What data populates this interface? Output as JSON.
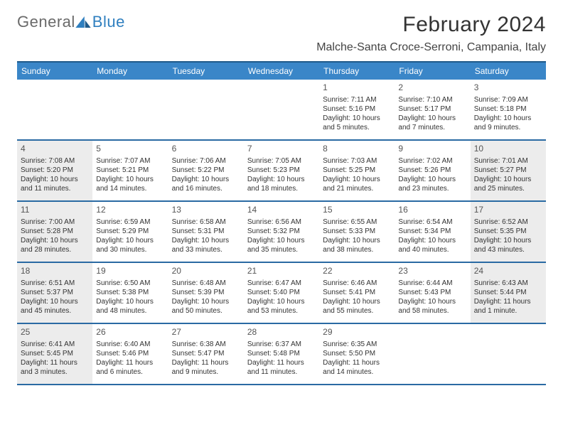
{
  "logo": {
    "text1": "General",
    "text2": "Blue"
  },
  "title": "February 2024",
  "location": "Malche-Santa Croce-Serroni, Campania, Italy",
  "colors": {
    "header_bg": "#3a86c8",
    "header_text": "#ffffff",
    "border": "#2a6aa3",
    "shaded_bg": "#ececec",
    "logo_gray": "#6a6a6a",
    "logo_blue": "#2f7fbf"
  },
  "weekdays": [
    "Sunday",
    "Monday",
    "Tuesday",
    "Wednesday",
    "Thursday",
    "Friday",
    "Saturday"
  ],
  "weeks": [
    [
      {
        "empty": true
      },
      {
        "empty": true
      },
      {
        "empty": true
      },
      {
        "empty": true
      },
      {
        "day": "1",
        "sunrise": "Sunrise: 7:11 AM",
        "sunset": "Sunset: 5:16 PM",
        "daylight": "Daylight: 10 hours and 5 minutes."
      },
      {
        "day": "2",
        "sunrise": "Sunrise: 7:10 AM",
        "sunset": "Sunset: 5:17 PM",
        "daylight": "Daylight: 10 hours and 7 minutes."
      },
      {
        "day": "3",
        "sunrise": "Sunrise: 7:09 AM",
        "sunset": "Sunset: 5:18 PM",
        "daylight": "Daylight: 10 hours and 9 minutes."
      }
    ],
    [
      {
        "day": "4",
        "shaded": true,
        "sunrise": "Sunrise: 7:08 AM",
        "sunset": "Sunset: 5:20 PM",
        "daylight": "Daylight: 10 hours and 11 minutes."
      },
      {
        "day": "5",
        "sunrise": "Sunrise: 7:07 AM",
        "sunset": "Sunset: 5:21 PM",
        "daylight": "Daylight: 10 hours and 14 minutes."
      },
      {
        "day": "6",
        "sunrise": "Sunrise: 7:06 AM",
        "sunset": "Sunset: 5:22 PM",
        "daylight": "Daylight: 10 hours and 16 minutes."
      },
      {
        "day": "7",
        "sunrise": "Sunrise: 7:05 AM",
        "sunset": "Sunset: 5:23 PM",
        "daylight": "Daylight: 10 hours and 18 minutes."
      },
      {
        "day": "8",
        "sunrise": "Sunrise: 7:03 AM",
        "sunset": "Sunset: 5:25 PM",
        "daylight": "Daylight: 10 hours and 21 minutes."
      },
      {
        "day": "9",
        "sunrise": "Sunrise: 7:02 AM",
        "sunset": "Sunset: 5:26 PM",
        "daylight": "Daylight: 10 hours and 23 minutes."
      },
      {
        "day": "10",
        "shaded": true,
        "sunrise": "Sunrise: 7:01 AM",
        "sunset": "Sunset: 5:27 PM",
        "daylight": "Daylight: 10 hours and 25 minutes."
      }
    ],
    [
      {
        "day": "11",
        "shaded": true,
        "sunrise": "Sunrise: 7:00 AM",
        "sunset": "Sunset: 5:28 PM",
        "daylight": "Daylight: 10 hours and 28 minutes."
      },
      {
        "day": "12",
        "sunrise": "Sunrise: 6:59 AM",
        "sunset": "Sunset: 5:29 PM",
        "daylight": "Daylight: 10 hours and 30 minutes."
      },
      {
        "day": "13",
        "sunrise": "Sunrise: 6:58 AM",
        "sunset": "Sunset: 5:31 PM",
        "daylight": "Daylight: 10 hours and 33 minutes."
      },
      {
        "day": "14",
        "sunrise": "Sunrise: 6:56 AM",
        "sunset": "Sunset: 5:32 PM",
        "daylight": "Daylight: 10 hours and 35 minutes."
      },
      {
        "day": "15",
        "sunrise": "Sunrise: 6:55 AM",
        "sunset": "Sunset: 5:33 PM",
        "daylight": "Daylight: 10 hours and 38 minutes."
      },
      {
        "day": "16",
        "sunrise": "Sunrise: 6:54 AM",
        "sunset": "Sunset: 5:34 PM",
        "daylight": "Daylight: 10 hours and 40 minutes."
      },
      {
        "day": "17",
        "shaded": true,
        "sunrise": "Sunrise: 6:52 AM",
        "sunset": "Sunset: 5:35 PM",
        "daylight": "Daylight: 10 hours and 43 minutes."
      }
    ],
    [
      {
        "day": "18",
        "shaded": true,
        "sunrise": "Sunrise: 6:51 AM",
        "sunset": "Sunset: 5:37 PM",
        "daylight": "Daylight: 10 hours and 45 minutes."
      },
      {
        "day": "19",
        "sunrise": "Sunrise: 6:50 AM",
        "sunset": "Sunset: 5:38 PM",
        "daylight": "Daylight: 10 hours and 48 minutes."
      },
      {
        "day": "20",
        "sunrise": "Sunrise: 6:48 AM",
        "sunset": "Sunset: 5:39 PM",
        "daylight": "Daylight: 10 hours and 50 minutes."
      },
      {
        "day": "21",
        "sunrise": "Sunrise: 6:47 AM",
        "sunset": "Sunset: 5:40 PM",
        "daylight": "Daylight: 10 hours and 53 minutes."
      },
      {
        "day": "22",
        "sunrise": "Sunrise: 6:46 AM",
        "sunset": "Sunset: 5:41 PM",
        "daylight": "Daylight: 10 hours and 55 minutes."
      },
      {
        "day": "23",
        "sunrise": "Sunrise: 6:44 AM",
        "sunset": "Sunset: 5:43 PM",
        "daylight": "Daylight: 10 hours and 58 minutes."
      },
      {
        "day": "24",
        "shaded": true,
        "sunrise": "Sunrise: 6:43 AM",
        "sunset": "Sunset: 5:44 PM",
        "daylight": "Daylight: 11 hours and 1 minute."
      }
    ],
    [
      {
        "day": "25",
        "shaded": true,
        "sunrise": "Sunrise: 6:41 AM",
        "sunset": "Sunset: 5:45 PM",
        "daylight": "Daylight: 11 hours and 3 minutes."
      },
      {
        "day": "26",
        "sunrise": "Sunrise: 6:40 AM",
        "sunset": "Sunset: 5:46 PM",
        "daylight": "Daylight: 11 hours and 6 minutes."
      },
      {
        "day": "27",
        "sunrise": "Sunrise: 6:38 AM",
        "sunset": "Sunset: 5:47 PM",
        "daylight": "Daylight: 11 hours and 9 minutes."
      },
      {
        "day": "28",
        "sunrise": "Sunrise: 6:37 AM",
        "sunset": "Sunset: 5:48 PM",
        "daylight": "Daylight: 11 hours and 11 minutes."
      },
      {
        "day": "29",
        "sunrise": "Sunrise: 6:35 AM",
        "sunset": "Sunset: 5:50 PM",
        "daylight": "Daylight: 11 hours and 14 minutes."
      },
      {
        "empty": true
      },
      {
        "empty": true
      }
    ]
  ]
}
